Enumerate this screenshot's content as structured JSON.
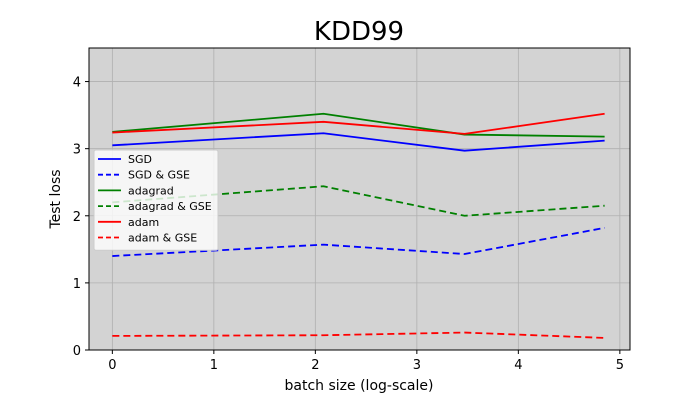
{
  "chart_data": {
    "type": "line",
    "title": "KDD99",
    "xlabel": "batch size (log-scale)",
    "ylabel": "Test loss",
    "xlim": [
      -0.23,
      5.1
    ],
    "ylim": [
      0,
      4.5
    ],
    "xticks": [
      0,
      1,
      2,
      3,
      4,
      5
    ],
    "yticks": [
      0,
      1,
      2,
      3,
      4
    ],
    "xtick_labels": [
      "0",
      "1",
      "2",
      "3",
      "4",
      "5"
    ],
    "ytick_labels": [
      "0",
      "1",
      "2",
      "3",
      "4"
    ],
    "grid": true,
    "background_color": "#d3d3d3",
    "legend_position": "middle-left",
    "x": [
      0,
      2.08,
      3.47,
      4.85
    ],
    "series": [
      {
        "name": "SGD",
        "color": "#0000ff",
        "style": "solid",
        "values": [
          3.05,
          3.23,
          2.97,
          3.12
        ]
      },
      {
        "name": "SGD & GSE",
        "color": "#0000ff",
        "style": "dashed",
        "values": [
          1.4,
          1.57,
          1.43,
          1.82
        ]
      },
      {
        "name": "adagrad",
        "color": "#008000",
        "style": "solid",
        "values": [
          3.25,
          3.52,
          3.21,
          3.18
        ]
      },
      {
        "name": "adagrad & GSE",
        "color": "#008000",
        "style": "dashed",
        "values": [
          2.2,
          2.44,
          2.0,
          2.15
        ]
      },
      {
        "name": "adam",
        "color": "#ff0000",
        "style": "solid",
        "values": [
          3.24,
          3.4,
          3.22,
          3.52
        ]
      },
      {
        "name": "adam & GSE",
        "color": "#ff0000",
        "style": "dashed",
        "values": [
          0.21,
          0.22,
          0.26,
          0.18
        ]
      }
    ]
  }
}
